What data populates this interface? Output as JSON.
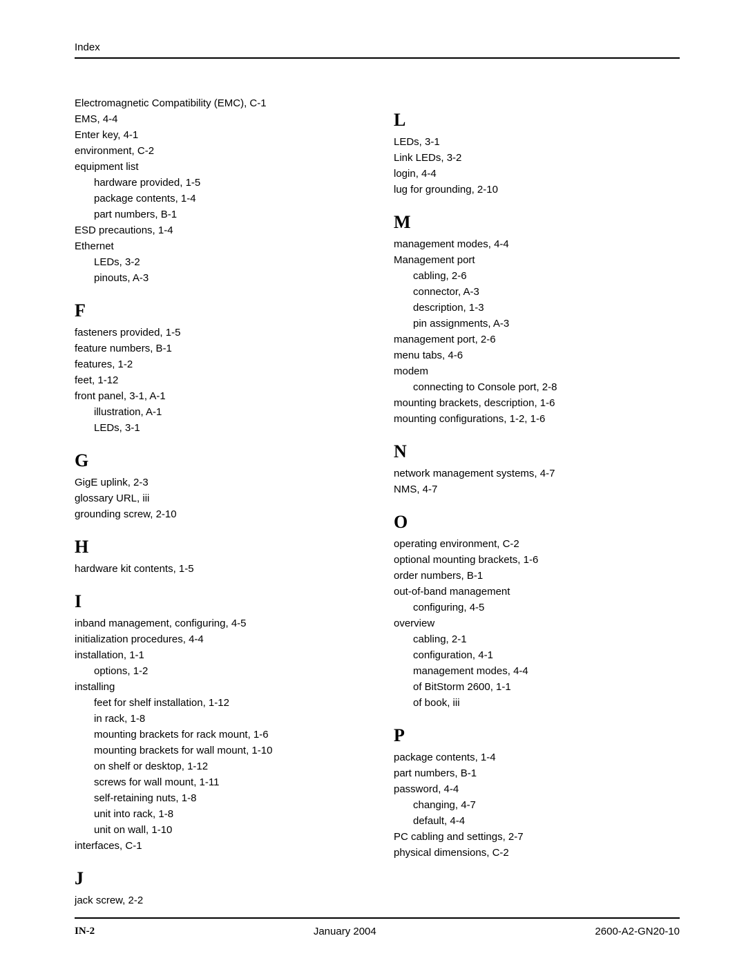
{
  "header": "Index",
  "footer": {
    "page_number": "IN-2",
    "date": "January 2004",
    "doc_number": "2600-A2-GN20-10"
  },
  "columns": [
    [
      {
        "letter": null,
        "entries": [
          {
            "text": "Electromagnetic Compatibility (EMC),  C-1"
          },
          {
            "text": "EMS,  4-4"
          },
          {
            "text": "Enter key,  4-1"
          },
          {
            "text": "environment,  C-2"
          },
          {
            "text": "equipment list"
          },
          {
            "text": "hardware provided,  1-5",
            "sub": true
          },
          {
            "text": "package contents,  1-4",
            "sub": true
          },
          {
            "text": "part numbers,  B-1",
            "sub": true
          },
          {
            "text": "ESD precautions,  1-4"
          },
          {
            "text": "Ethernet"
          },
          {
            "text": "LEDs,  3-2",
            "sub": true
          },
          {
            "text": "pinouts,  A-3",
            "sub": true
          }
        ]
      },
      {
        "letter": "F",
        "entries": [
          {
            "text": "fasteners provided,  1-5"
          },
          {
            "text": "feature numbers,  B-1"
          },
          {
            "text": "features,  1-2"
          },
          {
            "text": "feet,  1-12"
          },
          {
            "text": "front panel,  3-1, A-1"
          },
          {
            "text": "illustration,  A-1",
            "sub": true
          },
          {
            "text": "LEDs,  3-1",
            "sub": true
          }
        ]
      },
      {
        "letter": "G",
        "entries": [
          {
            "text": "GigE uplink,  2-3"
          },
          {
            "text": "glossary URL,  iii"
          },
          {
            "text": "grounding screw,  2-10"
          }
        ]
      },
      {
        "letter": "H",
        "entries": [
          {
            "text": "hardware kit contents,  1-5"
          }
        ]
      },
      {
        "letter": "I",
        "entries": [
          {
            "text": "inband management, configuring,  4-5"
          },
          {
            "text": "initialization procedures,  4-4"
          },
          {
            "text": "installation,  1-1"
          },
          {
            "text": "options,  1-2",
            "sub": true
          },
          {
            "text": "installing"
          },
          {
            "text": "feet for shelf installation,  1-12",
            "sub": true
          },
          {
            "text": "in rack,  1-8",
            "sub": true
          },
          {
            "text": "mounting brackets for rack mount,  1-6",
            "sub": true
          },
          {
            "text": "mounting brackets for wall mount,  1-10",
            "sub": true
          },
          {
            "text": "on shelf or desktop,  1-12",
            "sub": true
          },
          {
            "text": "screws for wall mount,  1-11",
            "sub": true
          },
          {
            "text": "self-retaining nuts,  1-8",
            "sub": true
          },
          {
            "text": "unit into rack,  1-8",
            "sub": true
          },
          {
            "text": "unit on wall,  1-10",
            "sub": true
          },
          {
            "text": "interfaces,  C-1"
          }
        ]
      },
      {
        "letter": "J",
        "entries": [
          {
            "text": "jack screw,  2-2"
          }
        ]
      }
    ],
    [
      {
        "letter": "L",
        "entries": [
          {
            "text": "LEDs,  3-1"
          },
          {
            "text": "Link LEDs,  3-2"
          },
          {
            "text": "login,  4-4"
          },
          {
            "text": "lug for grounding,  2-10"
          }
        ]
      },
      {
        "letter": "M",
        "entries": [
          {
            "text": "management modes,  4-4"
          },
          {
            "text": "Management port"
          },
          {
            "text": "cabling,  2-6",
            "sub": true
          },
          {
            "text": "connector,  A-3",
            "sub": true
          },
          {
            "text": "description,  1-3",
            "sub": true
          },
          {
            "text": "pin assignments,  A-3",
            "sub": true
          },
          {
            "text": "management port,  2-6"
          },
          {
            "text": "menu tabs,  4-6"
          },
          {
            "text": "modem"
          },
          {
            "text": "connecting to Console port,  2-8",
            "sub": true
          },
          {
            "text": "mounting brackets, description,  1-6"
          },
          {
            "text": "mounting configurations,  1-2, 1-6"
          }
        ]
      },
      {
        "letter": "N",
        "entries": [
          {
            "text": "network management systems,  4-7"
          },
          {
            "text": "NMS,  4-7"
          }
        ]
      },
      {
        "letter": "O",
        "entries": [
          {
            "text": "operating environment,  C-2"
          },
          {
            "text": "optional mounting brackets,  1-6"
          },
          {
            "text": "order numbers,  B-1"
          },
          {
            "text": "out-of-band management"
          },
          {
            "text": "configuring,  4-5",
            "sub": true
          },
          {
            "text": "overview"
          },
          {
            "text": "cabling,  2-1",
            "sub": true
          },
          {
            "text": "configuration,  4-1",
            "sub": true
          },
          {
            "text": "management modes,  4-4",
            "sub": true
          },
          {
            "text": "of BitStorm 2600,  1-1",
            "sub": true
          },
          {
            "text": "of book,  iii",
            "sub": true
          }
        ]
      },
      {
        "letter": "P",
        "entries": [
          {
            "text": "package contents,  1-4"
          },
          {
            "text": "part numbers,  B-1"
          },
          {
            "text": "password,  4-4"
          },
          {
            "text": "changing,  4-7",
            "sub": true
          },
          {
            "text": "default,  4-4",
            "sub": true
          },
          {
            "text": "PC cabling and settings,  2-7"
          },
          {
            "text": "physical dimensions,  C-2"
          }
        ]
      }
    ]
  ]
}
